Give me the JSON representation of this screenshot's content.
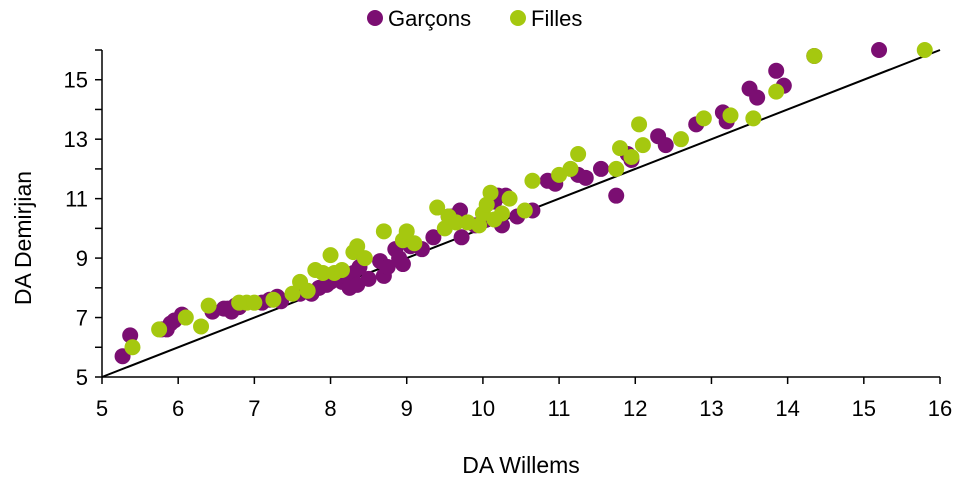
{
  "chart_data": {
    "type": "scatter",
    "title": "",
    "xlabel": "DA Willems",
    "ylabel": "DA Demirjian",
    "xlim": [
      5,
      16
    ],
    "ylim": [
      5,
      16
    ],
    "xticks": [
      5,
      6,
      7,
      8,
      9,
      10,
      11,
      12,
      13,
      14,
      15,
      16
    ],
    "yticks": [
      5,
      7,
      9,
      11,
      13,
      15
    ],
    "grid": false,
    "legend_position": "top-center",
    "reference_line": {
      "from": [
        5,
        5
      ],
      "to": [
        16,
        16
      ],
      "color": "#000000"
    },
    "series": [
      {
        "name": "Garçons",
        "color": "#7b0e72",
        "points": [
          [
            5.27,
            5.7
          ],
          [
            5.37,
            6.4
          ],
          [
            5.78,
            6.6
          ],
          [
            5.85,
            6.6
          ],
          [
            5.9,
            6.8
          ],
          [
            5.95,
            6.9
          ],
          [
            6.05,
            7.1
          ],
          [
            6.45,
            7.2
          ],
          [
            6.6,
            7.3
          ],
          [
            6.65,
            7.3
          ],
          [
            6.7,
            7.2
          ],
          [
            6.75,
            7.4
          ],
          [
            6.8,
            7.35
          ],
          [
            7.1,
            7.5
          ],
          [
            7.2,
            7.6
          ],
          [
            7.3,
            7.7
          ],
          [
            7.35,
            7.55
          ],
          [
            7.6,
            7.8
          ],
          [
            7.75,
            7.8
          ],
          [
            7.85,
            8.0
          ],
          [
            7.95,
            8.1
          ],
          [
            8.0,
            8.2
          ],
          [
            8.1,
            8.3
          ],
          [
            8.15,
            8.2
          ],
          [
            8.2,
            8.4
          ],
          [
            8.25,
            8.0
          ],
          [
            8.3,
            8.5
          ],
          [
            8.35,
            8.1
          ],
          [
            8.38,
            8.7
          ],
          [
            8.5,
            8.3
          ],
          [
            8.65,
            8.9
          ],
          [
            8.7,
            8.4
          ],
          [
            8.75,
            8.7
          ],
          [
            8.85,
            9.3
          ],
          [
            8.9,
            9.0
          ],
          [
            8.95,
            8.8
          ],
          [
            9.05,
            9.4
          ],
          [
            9.2,
            9.3
          ],
          [
            9.35,
            9.7
          ],
          [
            9.55,
            10.4
          ],
          [
            9.6,
            10.4
          ],
          [
            9.7,
            10.6
          ],
          [
            9.72,
            9.7
          ],
          [
            9.9,
            10.1
          ],
          [
            10.05,
            10.3
          ],
          [
            10.15,
            10.9
          ],
          [
            10.2,
            11.1
          ],
          [
            10.25,
            10.1
          ],
          [
            10.3,
            11.1
          ],
          [
            10.45,
            10.4
          ],
          [
            10.65,
            10.6
          ],
          [
            10.85,
            11.6
          ],
          [
            10.95,
            11.5
          ],
          [
            11.25,
            11.8
          ],
          [
            11.35,
            11.7
          ],
          [
            11.55,
            12.0
          ],
          [
            11.75,
            11.1
          ],
          [
            11.9,
            12.5
          ],
          [
            11.95,
            12.3
          ],
          [
            12.3,
            13.1
          ],
          [
            12.4,
            12.8
          ],
          [
            12.8,
            13.5
          ],
          [
            13.15,
            13.9
          ],
          [
            13.2,
            13.6
          ],
          [
            13.5,
            14.7
          ],
          [
            13.6,
            14.4
          ],
          [
            13.85,
            15.3
          ],
          [
            13.95,
            14.8
          ],
          [
            14.35,
            15.8
          ],
          [
            15.2,
            16.0
          ]
        ]
      },
      {
        "name": "Filles",
        "color": "#a5c80f",
        "points": [
          [
            5.4,
            6.0
          ],
          [
            5.75,
            6.6
          ],
          [
            6.1,
            7.0
          ],
          [
            6.3,
            6.7
          ],
          [
            6.4,
            7.4
          ],
          [
            6.8,
            7.5
          ],
          [
            6.9,
            7.5
          ],
          [
            7.0,
            7.5
          ],
          [
            7.25,
            7.6
          ],
          [
            7.5,
            7.8
          ],
          [
            7.6,
            8.2
          ],
          [
            7.7,
            7.9
          ],
          [
            7.8,
            8.6
          ],
          [
            7.9,
            8.5
          ],
          [
            8.0,
            9.1
          ],
          [
            8.05,
            8.5
          ],
          [
            8.15,
            8.6
          ],
          [
            8.3,
            9.2
          ],
          [
            8.35,
            9.4
          ],
          [
            8.45,
            9.0
          ],
          [
            8.7,
            9.9
          ],
          [
            8.95,
            9.6
          ],
          [
            9.0,
            9.9
          ],
          [
            9.1,
            9.5
          ],
          [
            9.4,
            10.7
          ],
          [
            9.5,
            10.0
          ],
          [
            9.55,
            10.4
          ],
          [
            9.65,
            10.2
          ],
          [
            9.8,
            10.2
          ],
          [
            9.95,
            10.1
          ],
          [
            10.0,
            10.5
          ],
          [
            10.05,
            10.8
          ],
          [
            10.1,
            11.2
          ],
          [
            10.15,
            10.3
          ],
          [
            10.25,
            10.5
          ],
          [
            10.35,
            11.0
          ],
          [
            10.55,
            10.6
          ],
          [
            10.65,
            11.6
          ],
          [
            11.0,
            11.8
          ],
          [
            11.15,
            12.0
          ],
          [
            11.25,
            12.5
          ],
          [
            11.75,
            12.0
          ],
          [
            11.8,
            12.7
          ],
          [
            11.95,
            12.4
          ],
          [
            12.05,
            13.5
          ],
          [
            12.1,
            12.8
          ],
          [
            12.6,
            13.0
          ],
          [
            12.9,
            13.7
          ],
          [
            13.25,
            13.8
          ],
          [
            13.55,
            13.7
          ],
          [
            13.85,
            14.6
          ],
          [
            14.35,
            15.8
          ],
          [
            15.8,
            16.0
          ]
        ]
      }
    ]
  }
}
